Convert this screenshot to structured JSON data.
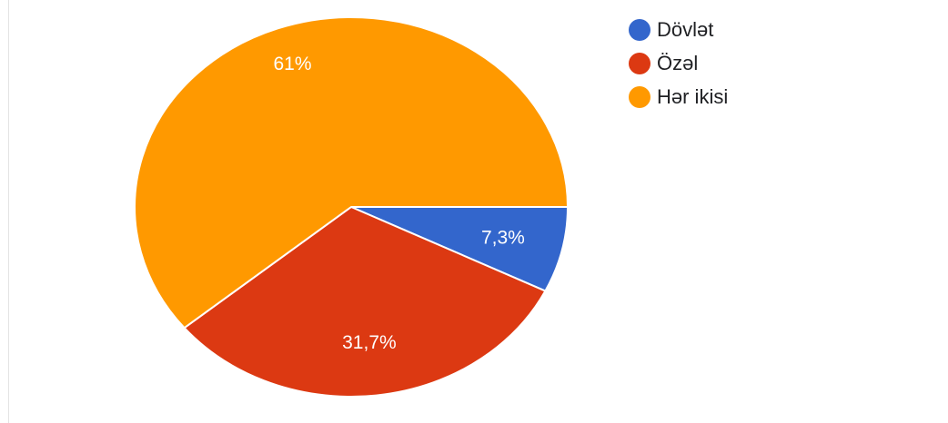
{
  "chart_data": {
    "type": "pie",
    "series": [
      {
        "name": "",
        "values": [
          {
            "label": "Dövlət",
            "value": 7.3,
            "display": "7,3%",
            "color": "#3366cc"
          },
          {
            "label": "Özəl",
            "value": 31.7,
            "display": "31,7%",
            "color": "#dc3912"
          },
          {
            "label": "Hər ikisi",
            "value": 61,
            "display": "61%",
            "color": "#ff9900"
          }
        ]
      }
    ],
    "start_angle": "3 o'clock",
    "direction": "clockwise",
    "legend": "top-right",
    "title": ""
  }
}
